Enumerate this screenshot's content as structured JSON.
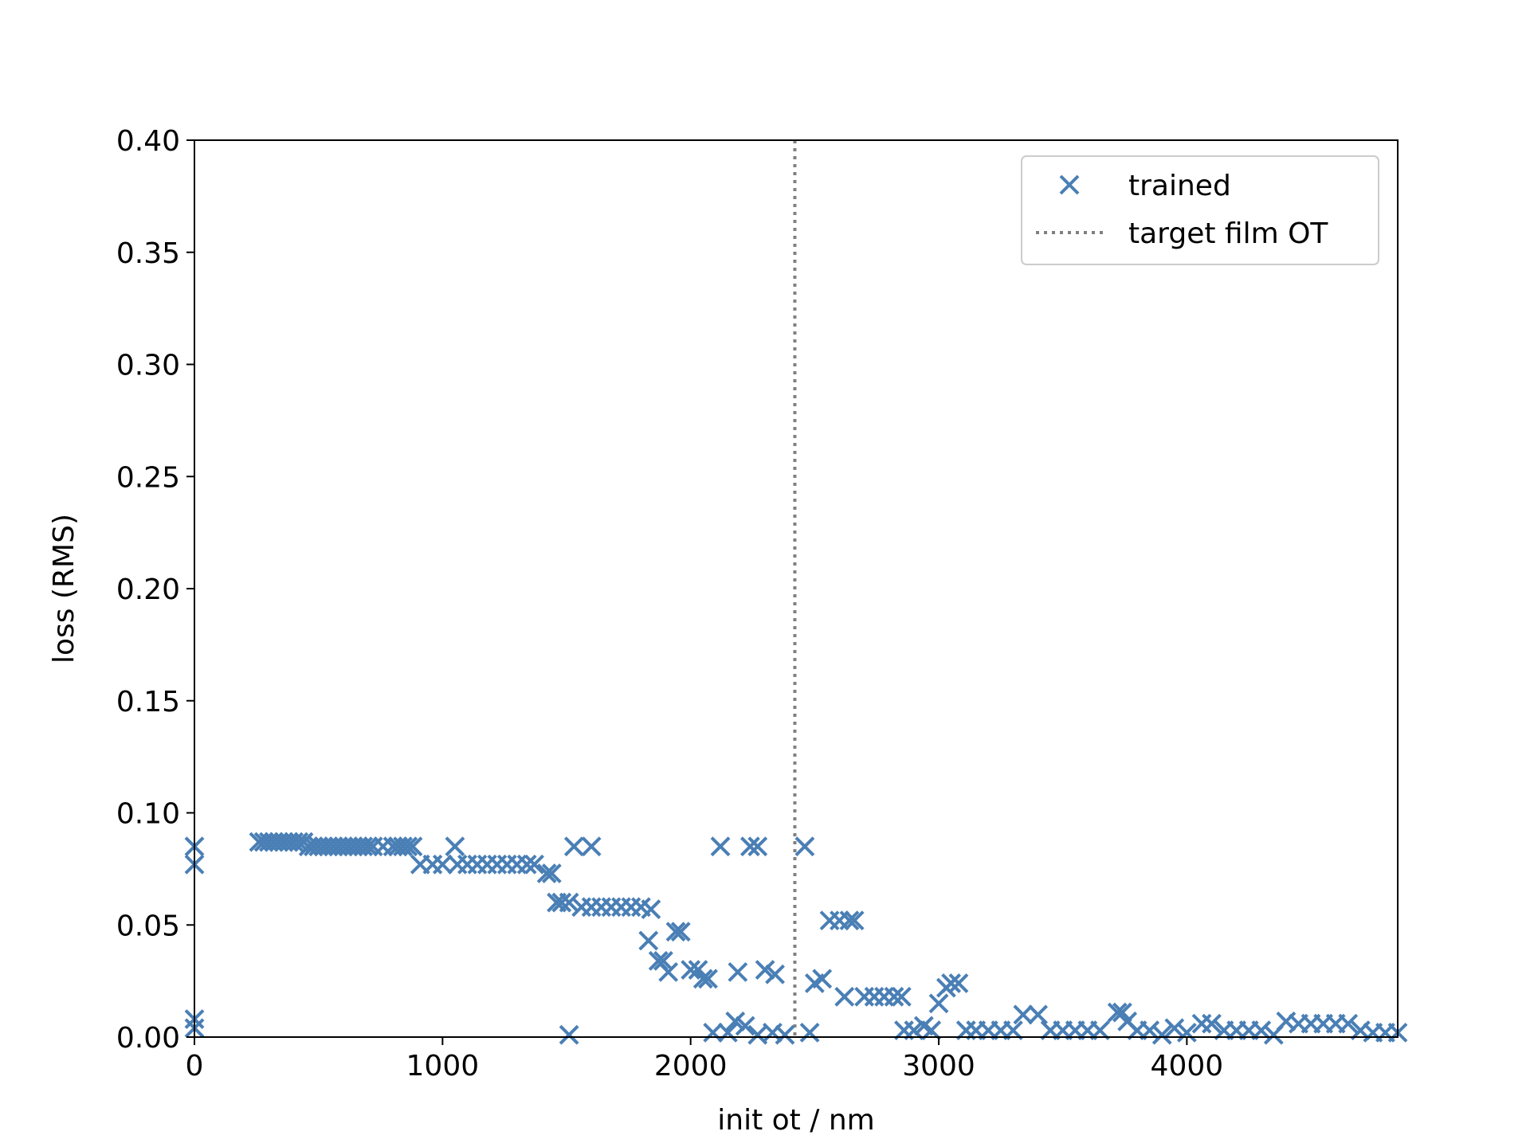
{
  "chart_data": {
    "type": "scatter",
    "xlabel": "init ot / nm",
    "ylabel": "loss (RMS)",
    "xlim": [
      0,
      4850
    ],
    "ylim": [
      0,
      0.4
    ],
    "x_ticks": [
      0,
      1000,
      2000,
      3000,
      4000
    ],
    "x_tick_labels": [
      "0",
      "1000",
      "2000",
      "3000",
      "4000"
    ],
    "y_ticks": [
      0,
      0.05,
      0.1,
      0.15,
      0.2,
      0.25,
      0.3,
      0.35,
      0.4
    ],
    "y_tick_labels": [
      "0.00",
      "0.05",
      "0.10",
      "0.15",
      "0.20",
      "0.25",
      "0.30",
      "0.35",
      "0.40"
    ],
    "grid": false,
    "legend_position": "top-right",
    "reference_line": {
      "name": "target film OT",
      "x": 2420,
      "style": "dotted",
      "color": "#808080"
    },
    "series": [
      {
        "name": "trained",
        "marker": "x",
        "color": "#4a7fb5",
        "points": [
          [
            0,
            0.085
          ],
          [
            0,
            0.077
          ],
          [
            0,
            0.008
          ],
          [
            0,
            0.004
          ],
          [
            260,
            0.087
          ],
          [
            280,
            0.087
          ],
          [
            300,
            0.087
          ],
          [
            320,
            0.087
          ],
          [
            340,
            0.087
          ],
          [
            360,
            0.087
          ],
          [
            380,
            0.087
          ],
          [
            400,
            0.087
          ],
          [
            420,
            0.087
          ],
          [
            440,
            0.087
          ],
          [
            460,
            0.085
          ],
          [
            480,
            0.085
          ],
          [
            500,
            0.085
          ],
          [
            520,
            0.085
          ],
          [
            540,
            0.085
          ],
          [
            560,
            0.085
          ],
          [
            580,
            0.085
          ],
          [
            600,
            0.085
          ],
          [
            620,
            0.085
          ],
          [
            640,
            0.085
          ],
          [
            660,
            0.085
          ],
          [
            680,
            0.085
          ],
          [
            700,
            0.085
          ],
          [
            720,
            0.085
          ],
          [
            760,
            0.085
          ],
          [
            800,
            0.085
          ],
          [
            820,
            0.085
          ],
          [
            840,
            0.085
          ],
          [
            860,
            0.085
          ],
          [
            880,
            0.085
          ],
          [
            910,
            0.077
          ],
          [
            960,
            0.077
          ],
          [
            1000,
            0.077
          ],
          [
            1050,
            0.085
          ],
          [
            1060,
            0.077
          ],
          [
            1100,
            0.077
          ],
          [
            1140,
            0.077
          ],
          [
            1180,
            0.077
          ],
          [
            1220,
            0.077
          ],
          [
            1260,
            0.077
          ],
          [
            1300,
            0.077
          ],
          [
            1340,
            0.077
          ],
          [
            1370,
            0.077
          ],
          [
            1420,
            0.073
          ],
          [
            1440,
            0.073
          ],
          [
            1460,
            0.06
          ],
          [
            1480,
            0.06
          ],
          [
            1510,
            0.06
          ],
          [
            1510,
            0.001
          ],
          [
            1530,
            0.085
          ],
          [
            1600,
            0.085
          ],
          [
            1560,
            0.058
          ],
          [
            1600,
            0.058
          ],
          [
            1640,
            0.058
          ],
          [
            1680,
            0.058
          ],
          [
            1720,
            0.058
          ],
          [
            1760,
            0.058
          ],
          [
            1800,
            0.058
          ],
          [
            1840,
            0.057
          ],
          [
            1830,
            0.043
          ],
          [
            1870,
            0.034
          ],
          [
            1890,
            0.034
          ],
          [
            1910,
            0.029
          ],
          [
            1940,
            0.047
          ],
          [
            1960,
            0.047
          ],
          [
            2000,
            0.03
          ],
          [
            2030,
            0.03
          ],
          [
            2050,
            0.026
          ],
          [
            2070,
            0.026
          ],
          [
            2090,
            0.002
          ],
          [
            2120,
            0.085
          ],
          [
            2150,
            0.002
          ],
          [
            2180,
            0.007
          ],
          [
            2190,
            0.029
          ],
          [
            2220,
            0.005
          ],
          [
            2240,
            0.085
          ],
          [
            2270,
            0.085
          ],
          [
            2270,
            0.001
          ],
          [
            2300,
            0.03
          ],
          [
            2330,
            0.002
          ],
          [
            2340,
            0.028
          ],
          [
            2380,
            0.001
          ],
          [
            2460,
            0.085
          ],
          [
            2480,
            0.002
          ],
          [
            2500,
            0.024
          ],
          [
            2530,
            0.026
          ],
          [
            2560,
            0.052
          ],
          [
            2600,
            0.052
          ],
          [
            2620,
            0.018
          ],
          [
            2640,
            0.052
          ],
          [
            2660,
            0.052
          ],
          [
            2700,
            0.018
          ],
          [
            2740,
            0.018
          ],
          [
            2780,
            0.018
          ],
          [
            2820,
            0.018
          ],
          [
            2850,
            0.018
          ],
          [
            2860,
            0.003
          ],
          [
            2900,
            0.003
          ],
          [
            2940,
            0.005
          ],
          [
            2970,
            0.003
          ],
          [
            3000,
            0.015
          ],
          [
            3030,
            0.022
          ],
          [
            3050,
            0.024
          ],
          [
            3080,
            0.024
          ],
          [
            3110,
            0.003
          ],
          [
            3150,
            0.003
          ],
          [
            3200,
            0.003
          ],
          [
            3250,
            0.003
          ],
          [
            3300,
            0.003
          ],
          [
            3340,
            0.01
          ],
          [
            3400,
            0.01
          ],
          [
            3450,
            0.003
          ],
          [
            3500,
            0.003
          ],
          [
            3550,
            0.003
          ],
          [
            3600,
            0.003
          ],
          [
            3650,
            0.003
          ],
          [
            3720,
            0.011
          ],
          [
            3740,
            0.011
          ],
          [
            3760,
            0.007
          ],
          [
            3800,
            0.003
          ],
          [
            3850,
            0.003
          ],
          [
            3900,
            0.001
          ],
          [
            3950,
            0.004
          ],
          [
            4000,
            0.002
          ],
          [
            4060,
            0.006
          ],
          [
            4100,
            0.006
          ],
          [
            4150,
            0.003
          ],
          [
            4200,
            0.003
          ],
          [
            4250,
            0.003
          ],
          [
            4300,
            0.003
          ],
          [
            4350,
            0.001
          ],
          [
            4400,
            0.007
          ],
          [
            4450,
            0.006
          ],
          [
            4500,
            0.006
          ],
          [
            4550,
            0.006
          ],
          [
            4600,
            0.006
          ],
          [
            4650,
            0.006
          ],
          [
            4700,
            0.003
          ],
          [
            4750,
            0.002
          ],
          [
            4800,
            0.002
          ],
          [
            4850,
            0.002
          ]
        ]
      }
    ]
  }
}
